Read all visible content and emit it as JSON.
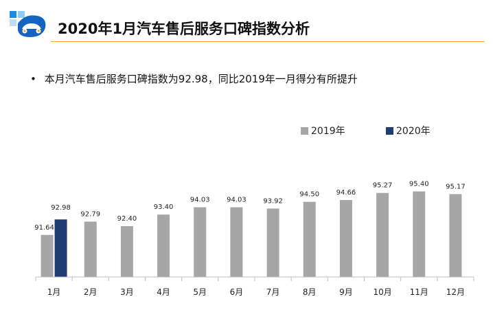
{
  "header": {
    "title": "2020年1月汽车售后服务口碑指数分析",
    "accent_color": "#f0a21e",
    "logo_icon": "car-logo-icon"
  },
  "summary": {
    "bullet": "•",
    "text": "本月汽车售后服务口碑指数为92.98，同比2019年一月得分有所提升"
  },
  "chart_data": {
    "type": "bar",
    "title": "",
    "xlabel": "",
    "ylabel": "",
    "legend_position": "top-right",
    "grid": false,
    "categories": [
      "1月",
      "2月",
      "3月",
      "4月",
      "5月",
      "6月",
      "7月",
      "8月",
      "9月",
      "10月",
      "11月",
      "12月"
    ],
    "series": [
      {
        "name": "2019年",
        "color": "#a6a6a6",
        "values": [
          91.64,
          92.79,
          92.4,
          93.4,
          94.03,
          94.03,
          93.92,
          94.5,
          94.66,
          95.27,
          95.4,
          95.17
        ],
        "labels": [
          "91.64",
          "92.79",
          "92.40",
          "93.40",
          "94.03",
          "94.03",
          "93.92",
          "94.50",
          "94.66",
          "95.27",
          "95.40",
          "95.17"
        ]
      },
      {
        "name": "2020年",
        "color": "#1f3d73",
        "values": [
          92.98,
          null,
          null,
          null,
          null,
          null,
          null,
          null,
          null,
          null,
          null,
          null
        ],
        "labels": [
          "92.98"
        ]
      }
    ],
    "ylim": [
      88,
      96.5
    ]
  }
}
